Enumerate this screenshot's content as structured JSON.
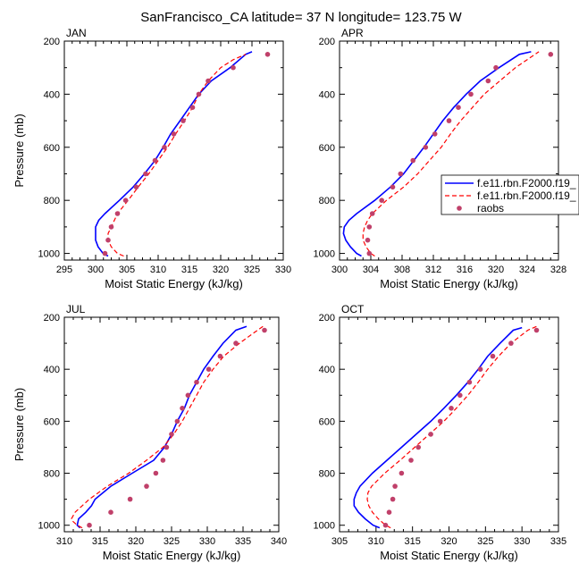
{
  "page": {
    "title": "SanFrancisco_CA  latitude= 37 N longitude= 123.75 W"
  },
  "colors": {
    "model1": "#0000ff",
    "model2": "#ff0000",
    "raobs": "#c0406a",
    "axis": "#000000"
  },
  "legend": {
    "entries": [
      {
        "label": "f.e11.rbn.F2000.f19_",
        "style": "solid",
        "color": "#0000ff"
      },
      {
        "label": "f.e11.rbn.F2000.f19_",
        "style": "dashed",
        "color": "#ff0000"
      },
      {
        "label": "raobs",
        "style": "dot",
        "color": "#c0406a"
      }
    ]
  },
  "chart_data": [
    {
      "type": "line",
      "panel": "JAN",
      "xlabel": "Moist Static Energy (kJ/kg)",
      "ylabel": "Pressure (mb)",
      "xlim": [
        295,
        330
      ],
      "ylim": [
        1025,
        200
      ],
      "xticks": [
        295,
        300,
        305,
        310,
        315,
        320,
        325,
        330
      ],
      "yticks": [
        200,
        400,
        600,
        800,
        1000
      ],
      "series": [
        {
          "name": "f.e11.rbn.F2000.f19_ (solid)",
          "p": [
            1010,
            1000,
            975,
            950,
            925,
            900,
            875,
            850,
            800,
            750,
            700,
            650,
            600,
            550,
            500,
            450,
            400,
            350,
            300,
            250,
            240
          ],
          "mse": [
            302,
            301.2,
            300.4,
            300,
            300,
            300,
            300.5,
            301.5,
            303.8,
            306,
            307.8,
            309.5,
            310.8,
            312,
            313.5,
            315,
            316.5,
            318.5,
            321.5,
            324,
            325
          ]
        },
        {
          "name": "f.e11.rbn.F2000.f19_ (dashed)",
          "p": [
            1010,
            1000,
            975,
            950,
            925,
            900,
            875,
            850,
            800,
            750,
            700,
            650,
            600,
            550,
            500,
            450,
            400,
            350,
            300,
            270,
            250
          ],
          "mse": [
            304.5,
            303.5,
            302.5,
            302,
            302,
            302.5,
            303,
            303.5,
            305.2,
            306.8,
            308.5,
            310,
            311.5,
            312.8,
            314.2,
            315.5,
            316.5,
            318,
            320,
            322,
            324
          ]
        },
        {
          "name": "raobs",
          "p": [
            1000,
            950,
            900,
            850,
            800,
            750,
            700,
            650,
            600,
            550,
            500,
            450,
            400,
            350,
            300,
            250
          ],
          "mse": [
            301.5,
            302,
            302.5,
            303.5,
            304.8,
            306.5,
            308,
            309.5,
            311,
            312.5,
            314,
            315.5,
            316.5,
            318,
            322,
            327.5
          ]
        }
      ]
    },
    {
      "type": "line",
      "panel": "APR",
      "xlabel": "Moist Static Energy (kJ/kg)",
      "ylabel": "",
      "xlim": [
        300,
        328
      ],
      "ylim": [
        1025,
        200
      ],
      "xticks": [
        300,
        304,
        308,
        312,
        316,
        320,
        324,
        328
      ],
      "yticks": [
        200,
        400,
        600,
        800,
        1000
      ],
      "series": [
        {
          "name": "f.e11.rbn.F2000.f19_ (solid)",
          "p": [
            1010,
            1000,
            975,
            950,
            925,
            900,
            875,
            850,
            800,
            750,
            700,
            650,
            600,
            550,
            500,
            450,
            400,
            350,
            300,
            250,
            240
          ],
          "mse": [
            302.8,
            302.2,
            301.4,
            300.8,
            300.5,
            300.6,
            301.2,
            302.2,
            304.5,
            306.5,
            308.2,
            309.5,
            310.8,
            312,
            313.2,
            314.6,
            316.2,
            318,
            320.4,
            323,
            324.5
          ]
        },
        {
          "name": "f.e11.rbn.F2000.f19_ (dashed)",
          "p": [
            1010,
            1000,
            975,
            950,
            925,
            900,
            875,
            850,
            800,
            750,
            700,
            650,
            600,
            550,
            500,
            450,
            400,
            350,
            300,
            260,
            240
          ],
          "mse": [
            304.5,
            304,
            303.4,
            303,
            303,
            303.2,
            303.6,
            304.2,
            306,
            308.2,
            310,
            311.5,
            313,
            314.2,
            315.5,
            317,
            318.5,
            320.5,
            322.5,
            324.5,
            325.5
          ]
        },
        {
          "name": "raobs",
          "p": [
            1000,
            950,
            900,
            850,
            800,
            750,
            700,
            650,
            600,
            550,
            500,
            450,
            400,
            350,
            300,
            250
          ],
          "mse": [
            303.8,
            303.6,
            303.8,
            304.2,
            305.4,
            306.8,
            307.8,
            309.4,
            311,
            312.2,
            314,
            315.2,
            316.8,
            319,
            320,
            327
          ]
        }
      ]
    },
    {
      "type": "line",
      "panel": "JUL",
      "xlabel": "Moist Static Energy (kJ/kg)",
      "ylabel": "Pressure (mb)",
      "xlim": [
        310,
        340
      ],
      "ylim": [
        1025,
        200
      ],
      "xticks": [
        310,
        315,
        320,
        325,
        330,
        335,
        340
      ],
      "yticks": [
        200,
        400,
        600,
        800,
        1000
      ],
      "series": [
        {
          "name": "f.e11.rbn.F2000.f19_ (solid)",
          "p": [
            1010,
            1000,
            975,
            950,
            925,
            900,
            850,
            800,
            750,
            700,
            650,
            600,
            550,
            500,
            450,
            400,
            350,
            300,
            250,
            235
          ],
          "mse": [
            312.2,
            311.8,
            312,
            313,
            313.8,
            314.3,
            316.5,
            319.5,
            322.5,
            324,
            325,
            325.8,
            326.8,
            327.5,
            328.5,
            329.5,
            330.8,
            332.2,
            334,
            335.5
          ]
        },
        {
          "name": "f.e11.rbn.F2000.f19_ (dashed)",
          "p": [
            1010,
            1000,
            985,
            975,
            950,
            925,
            900,
            850,
            800,
            750,
            700,
            650,
            600,
            550,
            500,
            450,
            400,
            350,
            300,
            260,
            235
          ],
          "mse": [
            312.5,
            311.8,
            311.2,
            311,
            311.5,
            312.5,
            313.5,
            316,
            319,
            321.5,
            323.8,
            325.3,
            326.5,
            327.5,
            328.5,
            329.5,
            330.8,
            332.3,
            334.5,
            336.5,
            337.8
          ]
        },
        {
          "name": "raobs",
          "p": [
            1000,
            950,
            900,
            850,
            800,
            750,
            700,
            650,
            600,
            550,
            500,
            450,
            400,
            350,
            300,
            250
          ],
          "mse": [
            313.5,
            316.5,
            319.2,
            321.5,
            322.8,
            323.8,
            324.3,
            325,
            325.8,
            326.5,
            327.3,
            328.5,
            330.2,
            331.8,
            334,
            338
          ]
        }
      ]
    },
    {
      "type": "line",
      "panel": "OCT",
      "xlabel": "Moist Static Energy (kJ/kg)",
      "ylabel": "",
      "xlim": [
        305,
        335
      ],
      "ylim": [
        1025,
        200
      ],
      "xticks": [
        305,
        310,
        315,
        320,
        325,
        330,
        335
      ],
      "yticks": [
        200,
        400,
        600,
        800,
        1000
      ],
      "series": [
        {
          "name": "f.e11.rbn.F2000.f19_ (solid)",
          "p": [
            1010,
            1000,
            975,
            950,
            925,
            900,
            875,
            850,
            800,
            750,
            700,
            650,
            600,
            550,
            500,
            450,
            400,
            350,
            300,
            250,
            240
          ],
          "mse": [
            310.5,
            309.6,
            308.5,
            307.6,
            307,
            307,
            307.3,
            307.8,
            309.5,
            311.5,
            313.5,
            315.5,
            317.5,
            319.3,
            321,
            322.6,
            324,
            325.3,
            327,
            328.8,
            330
          ]
        },
        {
          "name": "f.e11.rbn.F2000.f19_ (dashed)",
          "p": [
            1010,
            1000,
            975,
            950,
            925,
            900,
            875,
            850,
            800,
            750,
            700,
            650,
            600,
            550,
            500,
            450,
            400,
            350,
            300,
            250,
            235
          ],
          "mse": [
            312,
            311.3,
            310.3,
            309.5,
            309,
            308.8,
            308.9,
            309.4,
            311.2,
            313.3,
            315.3,
            317.3,
            319.3,
            321,
            322.6,
            324,
            325.3,
            326.8,
            328.5,
            330.8,
            332
          ]
        },
        {
          "name": "raobs",
          "p": [
            1000,
            950,
            900,
            850,
            800,
            750,
            700,
            650,
            600,
            550,
            500,
            450,
            400,
            350,
            300,
            250
          ],
          "mse": [
            311.3,
            311.8,
            312.3,
            312.6,
            313.5,
            314.8,
            315.8,
            317.5,
            318.8,
            320.3,
            321.5,
            322.8,
            324.3,
            326,
            328.5,
            332
          ]
        }
      ]
    }
  ]
}
